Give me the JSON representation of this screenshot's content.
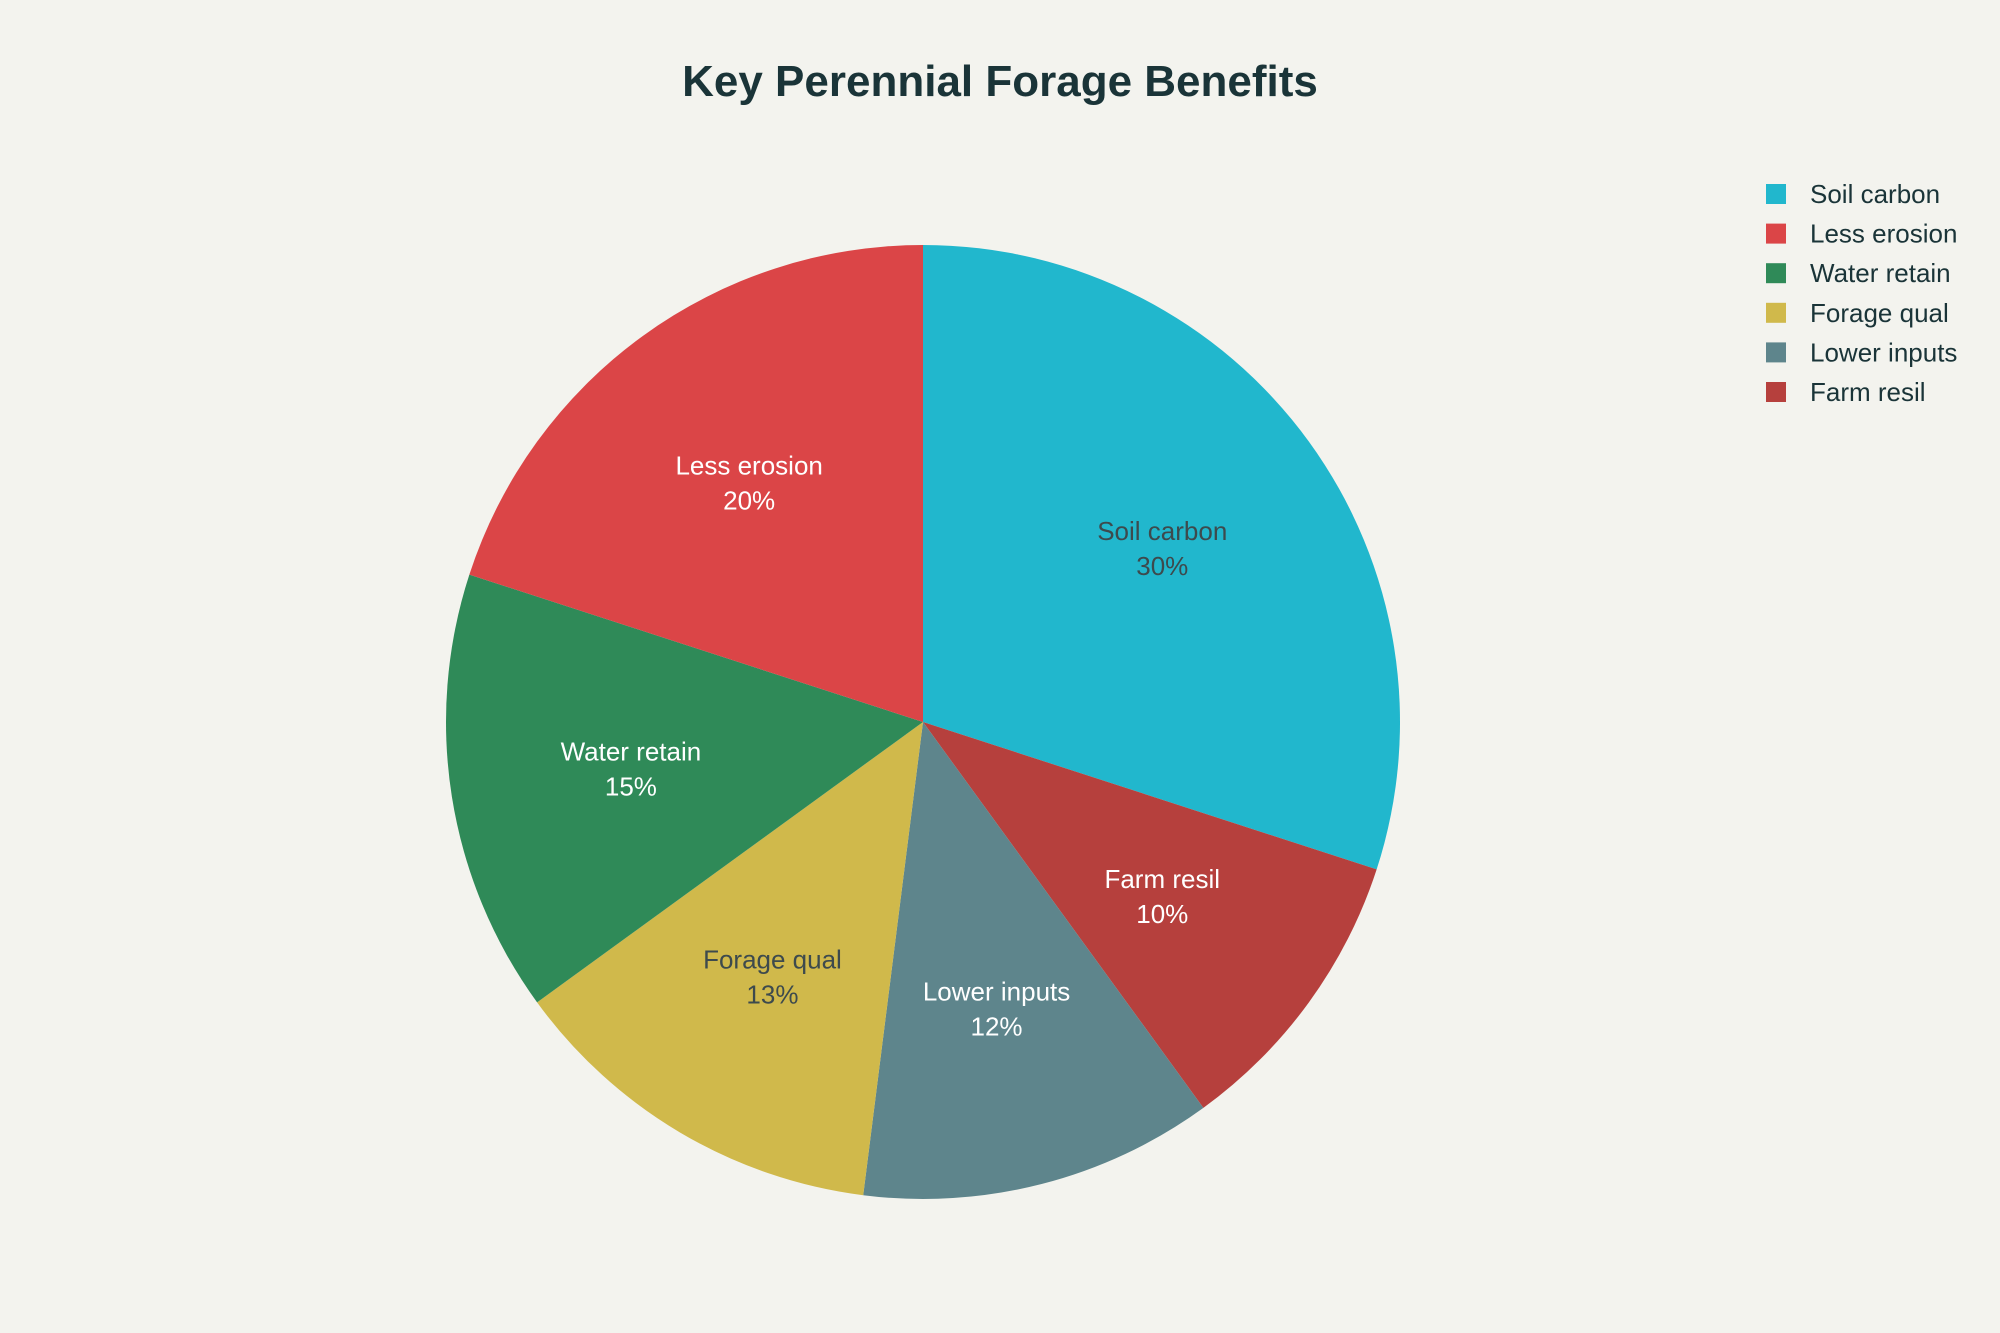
{
  "chart_data": {
    "type": "pie",
    "title": "Key Perennial Forage Benefits",
    "start_angle": "12 o'clock",
    "direction": "clockwise",
    "legend_position": "top-right",
    "slices": [
      {
        "label": "Soil carbon",
        "value": 30,
        "display": "30%",
        "color": "#21b7cd",
        "label_color": "#3d4a4d"
      },
      {
        "label": "Farm resil",
        "value": 10,
        "display": "10%",
        "color": "#b6403d",
        "label_color": "#ffffff"
      },
      {
        "label": "Lower inputs",
        "value": 12,
        "display": "12%",
        "color": "#5e858c",
        "label_color": "#ffffff"
      },
      {
        "label": "Forage qual",
        "value": 13,
        "display": "13%",
        "color": "#d0b94b",
        "label_color": "#3d4a4d"
      },
      {
        "label": "Water retain",
        "value": 15,
        "display": "15%",
        "color": "#2f8a58",
        "label_color": "#ffffff"
      },
      {
        "label": "Less erosion",
        "value": 20,
        "display": "20%",
        "color": "#db4547",
        "label_color": "#ffffff"
      }
    ],
    "legend": [
      {
        "label": "Soil carbon",
        "color": "#21b7cd"
      },
      {
        "label": "Less erosion",
        "color": "#db4547"
      },
      {
        "label": "Water retain",
        "color": "#2f8a58"
      },
      {
        "label": "Forage qual",
        "color": "#d0b94b"
      },
      {
        "label": "Lower inputs",
        "color": "#5e858c"
      },
      {
        "label": "Farm resil",
        "color": "#b6403d"
      }
    ]
  }
}
